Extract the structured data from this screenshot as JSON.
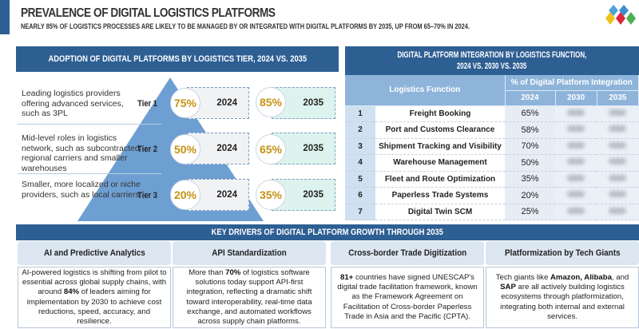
{
  "title": "PREVALENCE OF DIGITAL LOGISTICS PLATFORMS",
  "subtitle": "NEARLY 85% OF LOGISTICS PROCESSES ARE LIKELY TO BE MANAGED BY OR INTEGRATED WITH DIGITAL PLATFORMS BY 2035, UP FROM 65–70% IN 2024.",
  "colors": {
    "primary": "#2e5f93",
    "highlight": "#c69214",
    "table_header": "#8eb4da",
    "pyramid": "#6e9fd2"
  },
  "tiers_panel": {
    "header": "ADOPTION OF DIGITAL PLATFORMS BY LOGISTICS TIER, 2024 VS. 2035",
    "tiers": [
      {
        "label": "Tier 1",
        "description": "Leading logistics providers offering advanced services, such as 3PL",
        "value_2024": "75%",
        "year_2024": "2024",
        "value_2035": "85%",
        "year_2035": "2035"
      },
      {
        "label": "Tier 2",
        "description": "Mid-level roles in logistics network, such as subcontracted regional carriers and smaller warehouses",
        "value_2024": "50%",
        "year_2024": "2024",
        "value_2035": "65%",
        "year_2035": "2035"
      },
      {
        "label": "Tier 3",
        "description": "Smaller, more localized or niche providers, such as local carriers",
        "value_2024": "20%",
        "year_2024": "2024",
        "value_2035": "35%",
        "year_2035": "2035"
      }
    ]
  },
  "function_panel": {
    "header_line1": "DIGITAL PLATFORM INTEGRATION BY LOGISTICS FUNCTION,",
    "header_line2": "2024 VS. 2030 VS. 2035",
    "col_function": "Logistics Function",
    "col_group": "% of Digital Platform Integration",
    "years": [
      "2024",
      "2030",
      "2035"
    ],
    "rows": [
      {
        "num": "1",
        "function": "Freight Booking",
        "v2024": "65%"
      },
      {
        "num": "2",
        "function": "Port and Customs Clearance",
        "v2024": "58%"
      },
      {
        "num": "3",
        "function": "Shipment Tracking and Visibility",
        "v2024": "70%"
      },
      {
        "num": "4",
        "function": "Warehouse Management",
        "v2024": "50%"
      },
      {
        "num": "5",
        "function": "Fleet and Route Optimization",
        "v2024": "35%"
      },
      {
        "num": "6",
        "function": "Paperless Trade Systems",
        "v2024": "20%"
      },
      {
        "num": "7",
        "function": "Digital Twin SCM",
        "v2024": "25%"
      }
    ]
  },
  "drivers": {
    "header": "KEY DRIVERS OF DIGITAL PLATFORM GROWTH THROUGH 2035",
    "cards": [
      {
        "title": "AI and Predictive Analytics",
        "pre": "AI-powered logistics is shifting from pilot to essential across global supply chains, with around ",
        "bold": "84%",
        "post": " of leaders aiming for implementation by 2030 to achieve cost reductions, speed, accuracy, and resilience."
      },
      {
        "title": "API Standardization",
        "pre": "More than ",
        "bold": "70%",
        "post": " of logistics software solutions today support API-first integration, reflecting a dramatic shift toward interoperability, real-time data exchange, and automated workflows across supply chain platforms."
      },
      {
        "title": "Cross-border Trade Digitization",
        "pre": "",
        "bold": "81+",
        "post": " countries have signed UNESCAP's digital trade facilitation framework, known as the Framework Agreement on Facilitation of Cross-border Paperless Trade in Asia and the Pacific (CPTA)."
      },
      {
        "title": "Platformization by Tech Giants",
        "pre": "Tech giants like ",
        "bold": "Amazon, Alibaba",
        "mid": ", and ",
        "bold2": "SAP",
        "post": " are all actively building logistics ecosystems through platformization, integrating both internal and external services."
      }
    ]
  }
}
